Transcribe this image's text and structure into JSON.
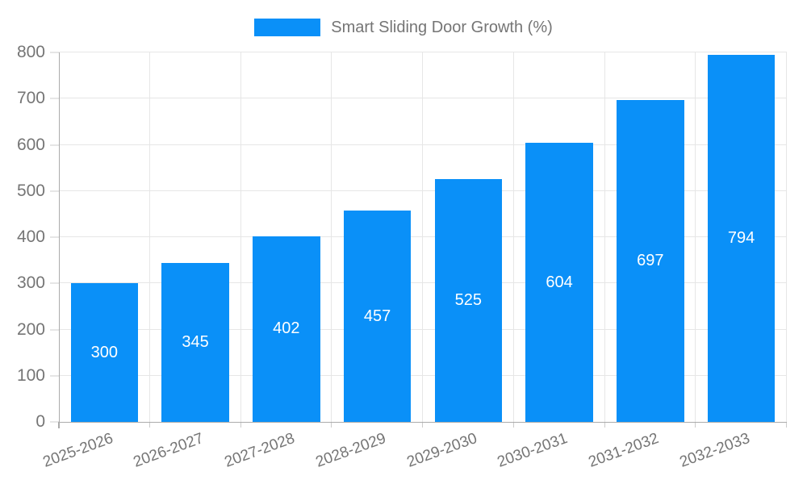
{
  "chart_data": {
    "type": "bar",
    "title": "",
    "legend": {
      "label": "Smart Sliding Door Growth (%)",
      "position": "top"
    },
    "categories": [
      "2025-2026",
      "2026-2027",
      "2027-2028",
      "2028-2029",
      "2029-2030",
      "2030-2031",
      "2031-2032",
      "2032-2033"
    ],
    "series": [
      {
        "name": "Smart Sliding Door Growth (%)",
        "values": [
          300,
          345,
          402,
          457,
          525,
          604,
          697,
          794
        ]
      }
    ],
    "bar_value_labels": [
      "300",
      "345",
      "402",
      "457",
      "525",
      "604",
      "697",
      "794"
    ],
    "xlabel": "",
    "ylabel": "",
    "ylim": [
      0,
      800
    ],
    "yticks": [
      0,
      100,
      200,
      300,
      400,
      500,
      600,
      700,
      800
    ],
    "grid": true,
    "x_label_rotation_deg": -20,
    "colors": {
      "bar": "#0a90f8",
      "bar_label": "#ffffff",
      "axis_line": "#ababab",
      "grid_line": "#e6e6e6",
      "tick_mark": "#cccccc",
      "axis_label": "#757575",
      "legend_text": "#757575",
      "background": "#ffffff"
    }
  }
}
